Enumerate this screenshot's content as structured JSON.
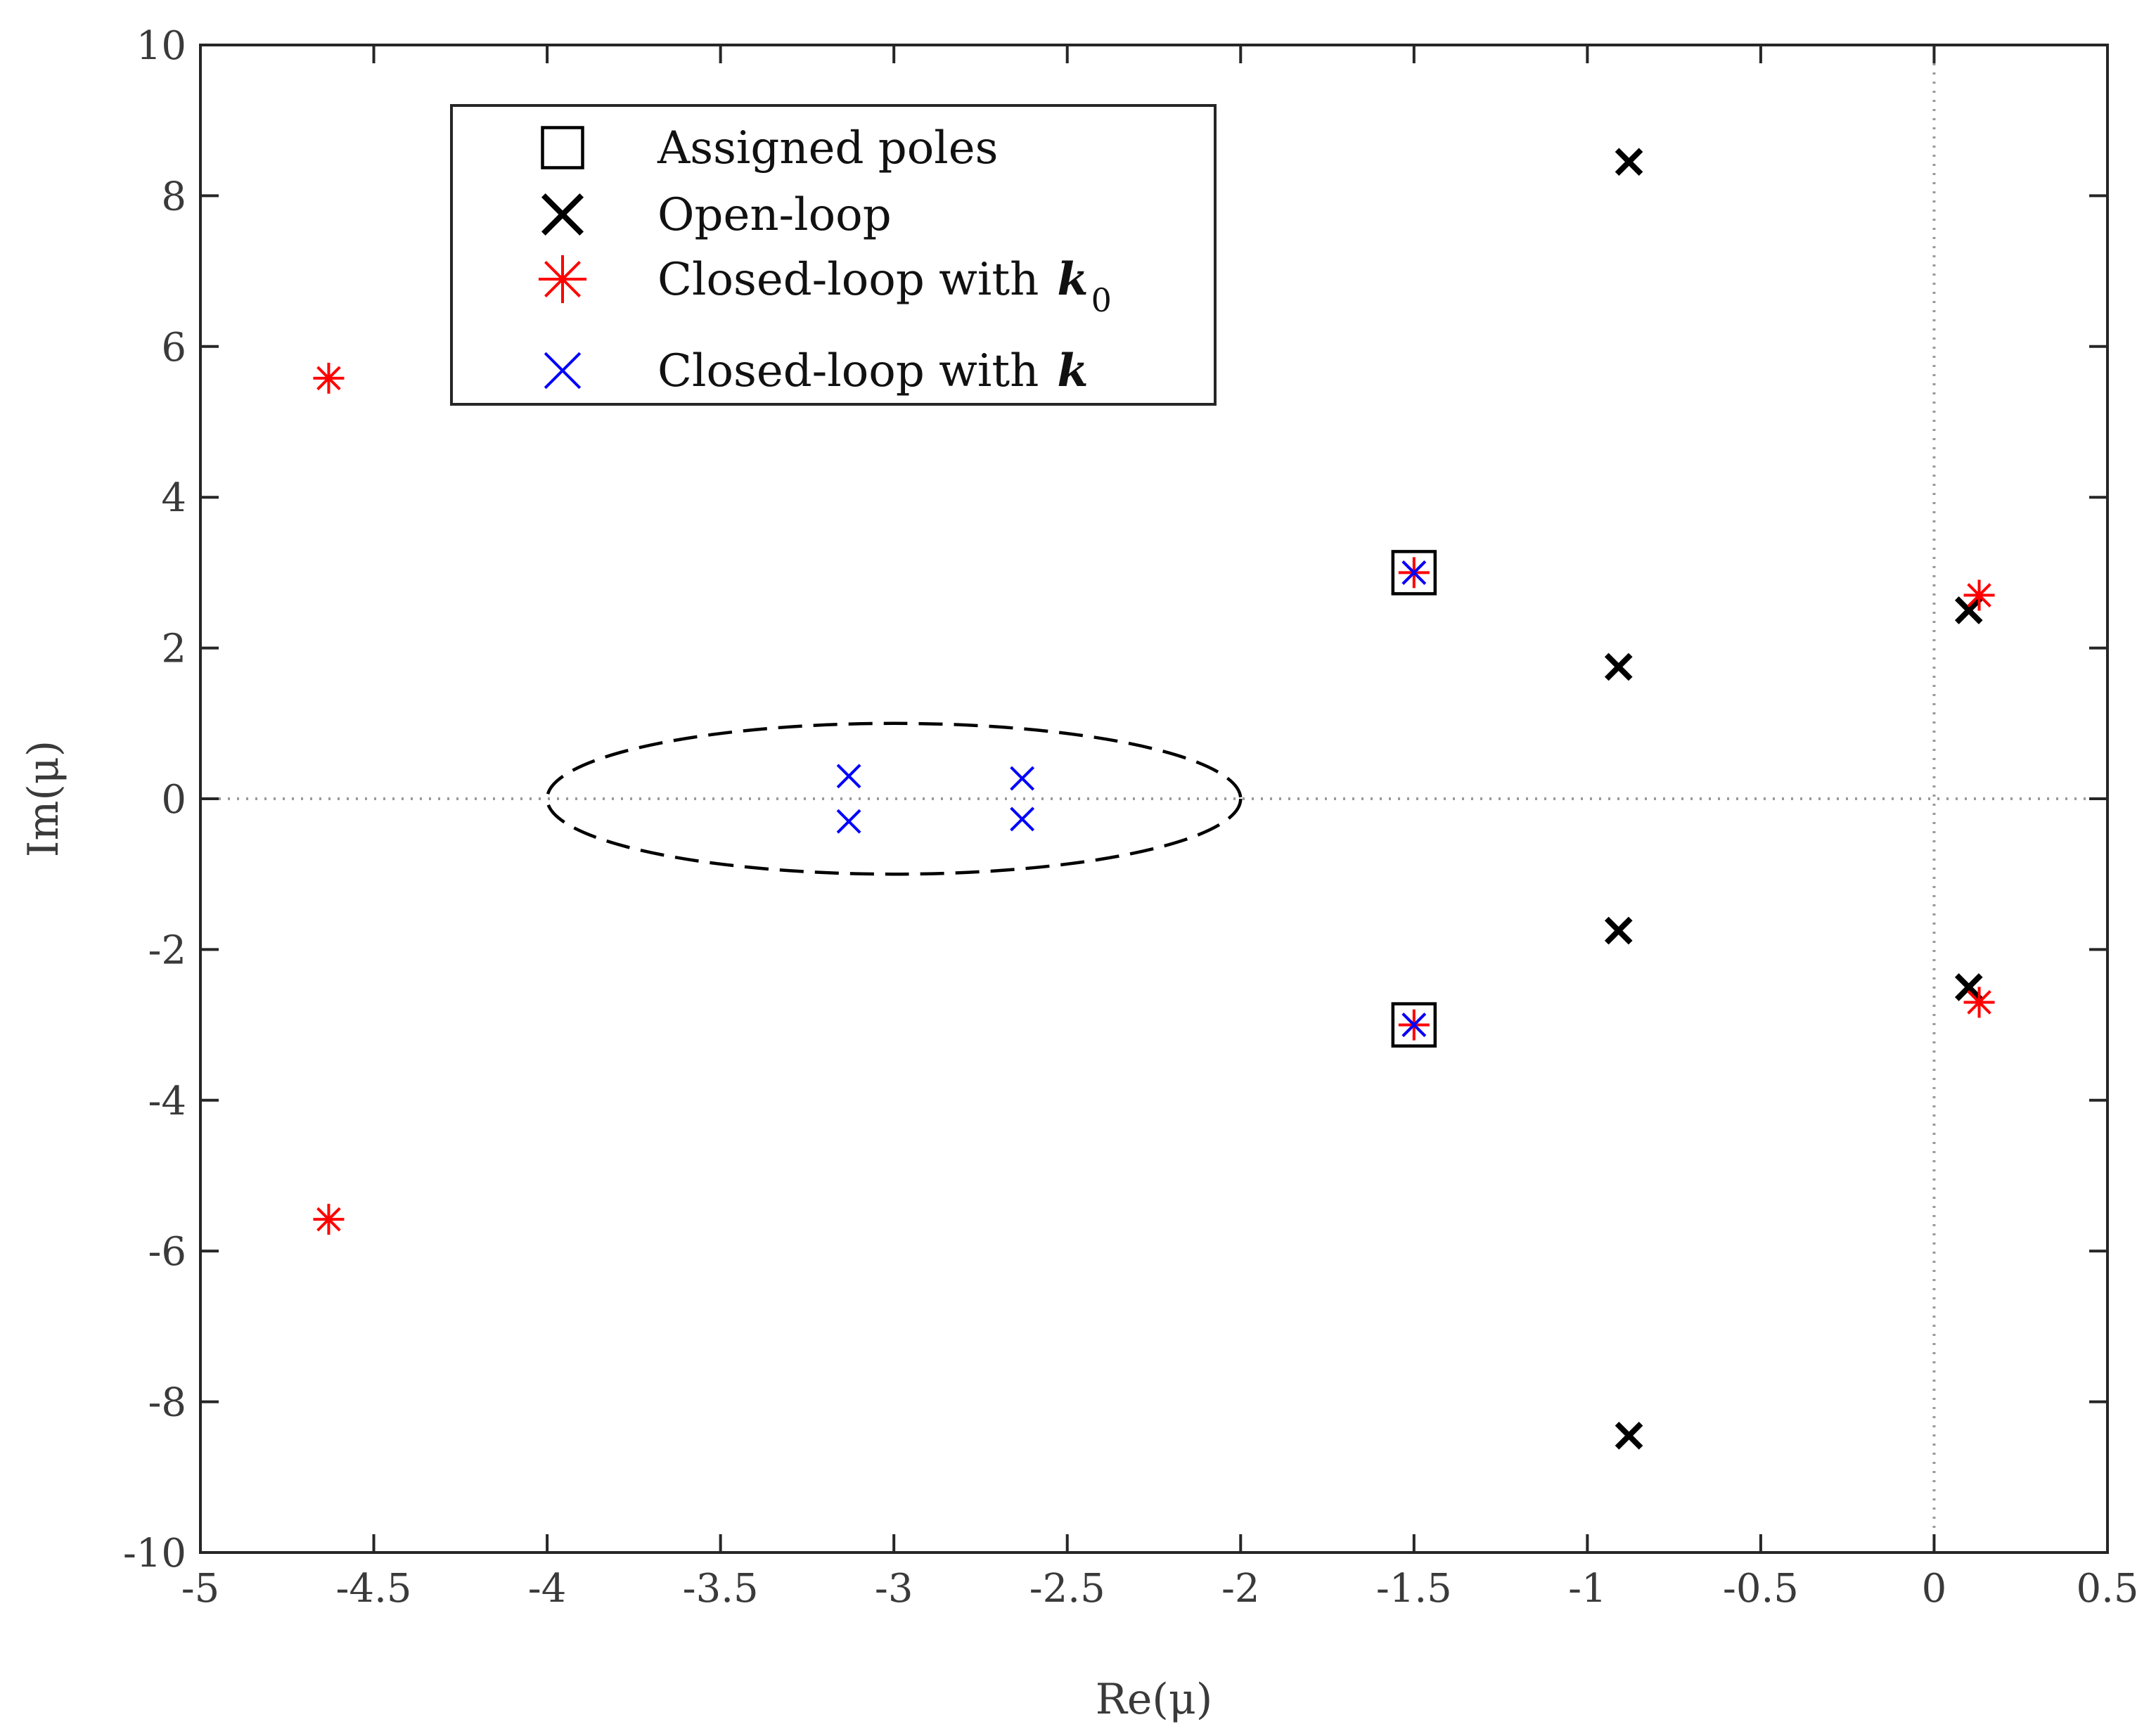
{
  "chart_data": {
    "type": "scatter",
    "title": "",
    "xlabel": "Re(μ)",
    "ylabel": "Im(μ)",
    "xlim": [
      -5,
      0.5
    ],
    "ylim": [
      -10,
      10
    ],
    "xticks": [
      -5,
      -4.5,
      -4,
      -3.5,
      -3,
      -2.5,
      -2,
      -1.5,
      -1,
      -0.5,
      0,
      0.5
    ],
    "xtick_labels": [
      "-5",
      "-4.5",
      "-4",
      "-3.5",
      "-3",
      "-2.5",
      "-2",
      "-1.5",
      "-1",
      "-0.5",
      "0",
      "0.5"
    ],
    "yticks": [
      -10,
      -8,
      -6,
      -4,
      -2,
      0,
      2,
      4,
      6,
      8,
      10
    ],
    "ytick_labels": [
      "-10",
      "-8",
      "-6",
      "-4",
      "-2",
      "0",
      "2",
      "4",
      "6",
      "8",
      "10"
    ],
    "grid": false,
    "reference_lines": {
      "x": 0,
      "y": 0,
      "style": "dotted"
    },
    "legend": {
      "placement": "top-left",
      "entries": [
        {
          "series": "assigned",
          "text": "Assigned poles",
          "italic": "",
          "sub": ""
        },
        {
          "series": "open",
          "text": "Open-loop",
          "italic": "",
          "sub": ""
        },
        {
          "series": "k0",
          "text": "Closed-loop with",
          "italic": "k",
          "sub": "0"
        },
        {
          "series": "k",
          "text": "Closed-loop with",
          "italic": "k",
          "sub": ""
        }
      ]
    },
    "series": [
      {
        "id": "assigned",
        "name": "Assigned poles",
        "marker": "square",
        "color": "#000000",
        "points": [
          [
            -1.5,
            3.0
          ],
          [
            -1.5,
            -3.0
          ]
        ]
      },
      {
        "id": "open",
        "name": "Open-loop",
        "marker": "x-bold",
        "color": "#000000",
        "points": [
          [
            -0.88,
            8.45
          ],
          [
            -0.91,
            1.75
          ],
          [
            -0.91,
            -1.75
          ],
          [
            -0.88,
            -8.45
          ],
          [
            0.1,
            2.5
          ],
          [
            0.1,
            -2.5
          ]
        ]
      },
      {
        "id": "k0",
        "name": "Closed-loop with k0",
        "marker": "asterisk",
        "color": "#ff0000",
        "points": [
          [
            -4.63,
            5.58
          ],
          [
            -4.63,
            -5.58
          ],
          [
            -1.5,
            3.0
          ],
          [
            -1.5,
            -3.0
          ],
          [
            0.13,
            2.7
          ],
          [
            0.13,
            -2.7
          ]
        ]
      },
      {
        "id": "k",
        "name": "Closed-loop with k",
        "marker": "x-thin",
        "color": "#0000ff",
        "points": [
          [
            -3.13,
            0.3
          ],
          [
            -3.13,
            -0.3
          ],
          [
            -2.63,
            0.27
          ],
          [
            -2.63,
            -0.27
          ],
          [
            -1.5,
            3.0
          ],
          [
            -1.5,
            -3.0
          ]
        ]
      }
    ],
    "annotations": [
      {
        "type": "ellipse",
        "style": "dashed",
        "color": "#000000",
        "center": [
          -3,
          0
        ],
        "rx": 1,
        "ry": 1
      }
    ]
  }
}
